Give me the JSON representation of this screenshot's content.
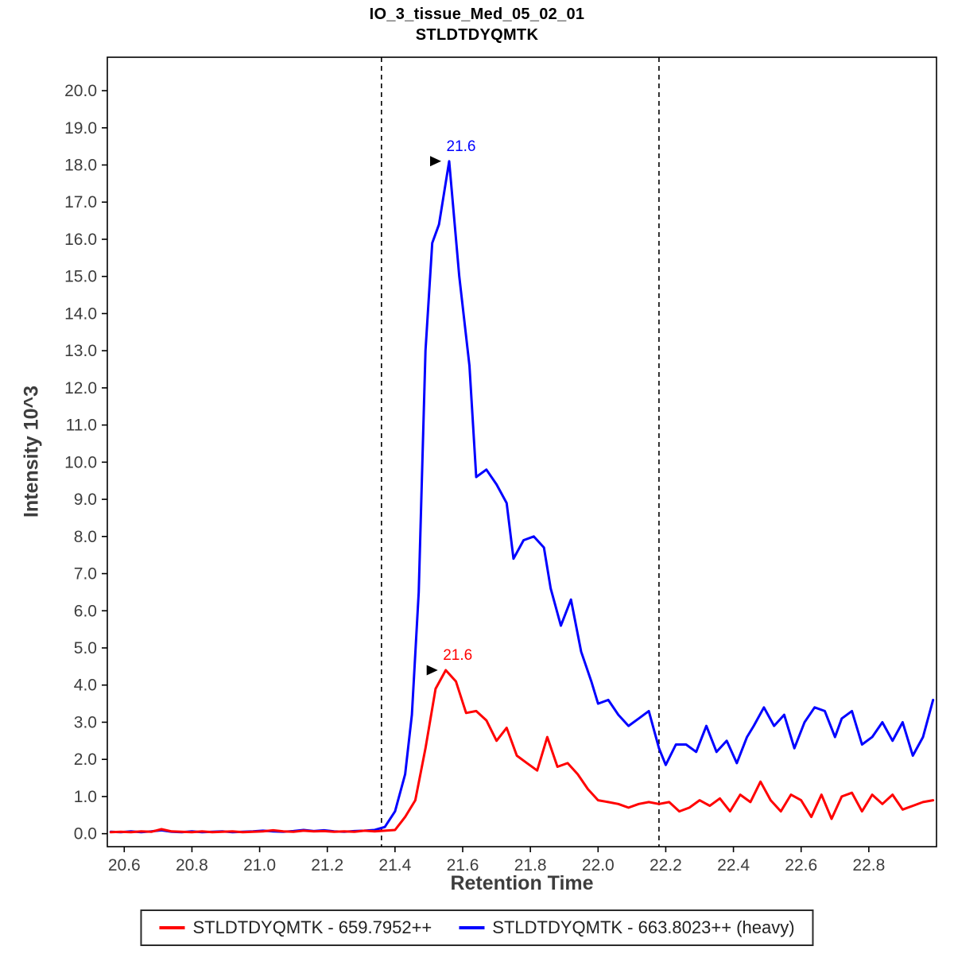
{
  "title": {
    "line1": "IO_3_tissue_Med_05_02_01",
    "line2": "STLDTDYQMTK"
  },
  "axes": {
    "x_label": "Retention Time",
    "y_label": "Intensity 10^3"
  },
  "chart_data": {
    "type": "line",
    "title": "IO_3_tissue_Med_05_02_01",
    "subtitle": "STLDTDYQMTK",
    "xlabel": "Retention Time",
    "ylabel": "Intensity 10^3",
    "xlim": [
      20.55,
      23.0
    ],
    "ylim": [
      -0.35,
      20.9
    ],
    "x_ticks": [
      20.6,
      20.8,
      21.0,
      21.2,
      21.4,
      21.6,
      21.8,
      22.0,
      22.2,
      22.4,
      22.6,
      22.8
    ],
    "y_ticks": [
      0.0,
      1.0,
      2.0,
      3.0,
      4.0,
      5.0,
      6.0,
      7.0,
      8.0,
      9.0,
      10.0,
      11.0,
      12.0,
      13.0,
      14.0,
      15.0,
      16.0,
      17.0,
      18.0,
      19.0,
      20.0
    ],
    "grid": false,
    "legend_position": "bottom",
    "boundaries": [
      21.36,
      22.18
    ],
    "annotations": [
      {
        "x": 21.56,
        "y": 18.1,
        "label": "21.6",
        "color": "#0000ff"
      },
      {
        "x": 21.55,
        "y": 4.4,
        "label": "21.6",
        "color": "#ff0000"
      }
    ],
    "series": [
      {
        "name": "STLDTDYQMTK - 659.7952++",
        "color": "#ff0000",
        "points": [
          [
            20.56,
            0.04
          ],
          [
            20.59,
            0.05
          ],
          [
            20.62,
            0.04
          ],
          [
            20.65,
            0.06
          ],
          [
            20.68,
            0.05
          ],
          [
            20.71,
            0.12
          ],
          [
            20.74,
            0.06
          ],
          [
            20.77,
            0.05
          ],
          [
            20.8,
            0.04
          ],
          [
            20.83,
            0.06
          ],
          [
            20.86,
            0.04
          ],
          [
            20.89,
            0.05
          ],
          [
            20.92,
            0.06
          ],
          [
            20.95,
            0.04
          ],
          [
            20.98,
            0.05
          ],
          [
            21.01,
            0.06
          ],
          [
            21.04,
            0.09
          ],
          [
            21.07,
            0.06
          ],
          [
            21.1,
            0.05
          ],
          [
            21.13,
            0.08
          ],
          [
            21.16,
            0.06
          ],
          [
            21.19,
            0.07
          ],
          [
            21.22,
            0.05
          ],
          [
            21.25,
            0.06
          ],
          [
            21.28,
            0.05
          ],
          [
            21.31,
            0.08
          ],
          [
            21.34,
            0.06
          ],
          [
            21.37,
            0.08
          ],
          [
            21.4,
            0.1
          ],
          [
            21.43,
            0.45
          ],
          [
            21.46,
            0.9
          ],
          [
            21.49,
            2.3
          ],
          [
            21.52,
            3.9
          ],
          [
            21.55,
            4.4
          ],
          [
            21.58,
            4.1
          ],
          [
            21.61,
            3.25
          ],
          [
            21.64,
            3.3
          ],
          [
            21.67,
            3.05
          ],
          [
            21.7,
            2.5
          ],
          [
            21.73,
            2.85
          ],
          [
            21.76,
            2.1
          ],
          [
            21.79,
            1.9
          ],
          [
            21.82,
            1.7
          ],
          [
            21.85,
            2.6
          ],
          [
            21.88,
            1.8
          ],
          [
            21.91,
            1.9
          ],
          [
            21.94,
            1.6
          ],
          [
            21.97,
            1.2
          ],
          [
            22.0,
            0.9
          ],
          [
            22.03,
            0.85
          ],
          [
            22.06,
            0.8
          ],
          [
            22.09,
            0.7
          ],
          [
            22.12,
            0.8
          ],
          [
            22.15,
            0.85
          ],
          [
            22.18,
            0.8
          ],
          [
            22.21,
            0.85
          ],
          [
            22.24,
            0.6
          ],
          [
            22.27,
            0.7
          ],
          [
            22.3,
            0.9
          ],
          [
            22.33,
            0.75
          ],
          [
            22.36,
            0.95
          ],
          [
            22.39,
            0.6
          ],
          [
            22.42,
            1.05
          ],
          [
            22.45,
            0.85
          ],
          [
            22.48,
            1.4
          ],
          [
            22.51,
            0.9
          ],
          [
            22.54,
            0.6
          ],
          [
            22.57,
            1.05
          ],
          [
            22.6,
            0.9
          ],
          [
            22.63,
            0.45
          ],
          [
            22.66,
            1.05
          ],
          [
            22.69,
            0.4
          ],
          [
            22.72,
            1.0
          ],
          [
            22.75,
            1.1
          ],
          [
            22.78,
            0.6
          ],
          [
            22.81,
            1.05
          ],
          [
            22.84,
            0.8
          ],
          [
            22.87,
            1.05
          ],
          [
            22.9,
            0.65
          ],
          [
            22.93,
            0.75
          ],
          [
            22.96,
            0.85
          ],
          [
            22.99,
            0.9
          ]
        ]
      },
      {
        "name": "STLDTDYQMTK - 663.8023++ (heavy)",
        "color": "#0000ff",
        "points": [
          [
            20.56,
            0.05
          ],
          [
            20.59,
            0.04
          ],
          [
            20.62,
            0.06
          ],
          [
            20.65,
            0.04
          ],
          [
            20.68,
            0.06
          ],
          [
            20.71,
            0.09
          ],
          [
            20.74,
            0.05
          ],
          [
            20.77,
            0.04
          ],
          [
            20.8,
            0.06
          ],
          [
            20.83,
            0.04
          ],
          [
            20.86,
            0.05
          ],
          [
            20.89,
            0.06
          ],
          [
            20.92,
            0.04
          ],
          [
            20.95,
            0.05
          ],
          [
            20.98,
            0.06
          ],
          [
            21.01,
            0.08
          ],
          [
            21.04,
            0.06
          ],
          [
            21.07,
            0.05
          ],
          [
            21.1,
            0.07
          ],
          [
            21.13,
            0.1
          ],
          [
            21.16,
            0.07
          ],
          [
            21.19,
            0.09
          ],
          [
            21.22,
            0.06
          ],
          [
            21.25,
            0.05
          ],
          [
            21.28,
            0.07
          ],
          [
            21.31,
            0.08
          ],
          [
            21.34,
            0.1
          ],
          [
            21.37,
            0.18
          ],
          [
            21.4,
            0.6
          ],
          [
            21.43,
            1.6
          ],
          [
            21.45,
            3.2
          ],
          [
            21.47,
            6.5
          ],
          [
            21.49,
            13.0
          ],
          [
            21.51,
            15.9
          ],
          [
            21.53,
            16.4
          ],
          [
            21.56,
            18.1
          ],
          [
            21.59,
            15.0
          ],
          [
            21.62,
            12.6
          ],
          [
            21.64,
            9.6
          ],
          [
            21.67,
            9.8
          ],
          [
            21.7,
            9.4
          ],
          [
            21.73,
            8.9
          ],
          [
            21.75,
            7.4
          ],
          [
            21.78,
            7.9
          ],
          [
            21.81,
            8.0
          ],
          [
            21.84,
            7.7
          ],
          [
            21.86,
            6.6
          ],
          [
            21.89,
            5.6
          ],
          [
            21.92,
            6.3
          ],
          [
            21.95,
            4.9
          ],
          [
            21.98,
            4.1
          ],
          [
            22.0,
            3.5
          ],
          [
            22.03,
            3.6
          ],
          [
            22.06,
            3.2
          ],
          [
            22.09,
            2.9
          ],
          [
            22.12,
            3.1
          ],
          [
            22.15,
            3.3
          ],
          [
            22.18,
            2.3
          ],
          [
            22.2,
            1.85
          ],
          [
            22.23,
            2.4
          ],
          [
            22.26,
            2.4
          ],
          [
            22.29,
            2.2
          ],
          [
            22.32,
            2.9
          ],
          [
            22.35,
            2.2
          ],
          [
            22.38,
            2.5
          ],
          [
            22.41,
            1.9
          ],
          [
            22.44,
            2.6
          ],
          [
            22.46,
            2.9
          ],
          [
            22.49,
            3.4
          ],
          [
            22.52,
            2.9
          ],
          [
            22.55,
            3.2
          ],
          [
            22.58,
            2.3
          ],
          [
            22.61,
            3.0
          ],
          [
            22.64,
            3.4
          ],
          [
            22.67,
            3.3
          ],
          [
            22.7,
            2.6
          ],
          [
            22.72,
            3.1
          ],
          [
            22.75,
            3.3
          ],
          [
            22.78,
            2.4
          ],
          [
            22.81,
            2.6
          ],
          [
            22.84,
            3.0
          ],
          [
            22.87,
            2.5
          ],
          [
            22.9,
            3.0
          ],
          [
            22.93,
            2.1
          ],
          [
            22.96,
            2.6
          ],
          [
            22.99,
            3.6
          ]
        ]
      }
    ]
  },
  "colors": {
    "light_trace": "#ff0000",
    "heavy_trace": "#0000ff",
    "boundary": "#000000"
  }
}
